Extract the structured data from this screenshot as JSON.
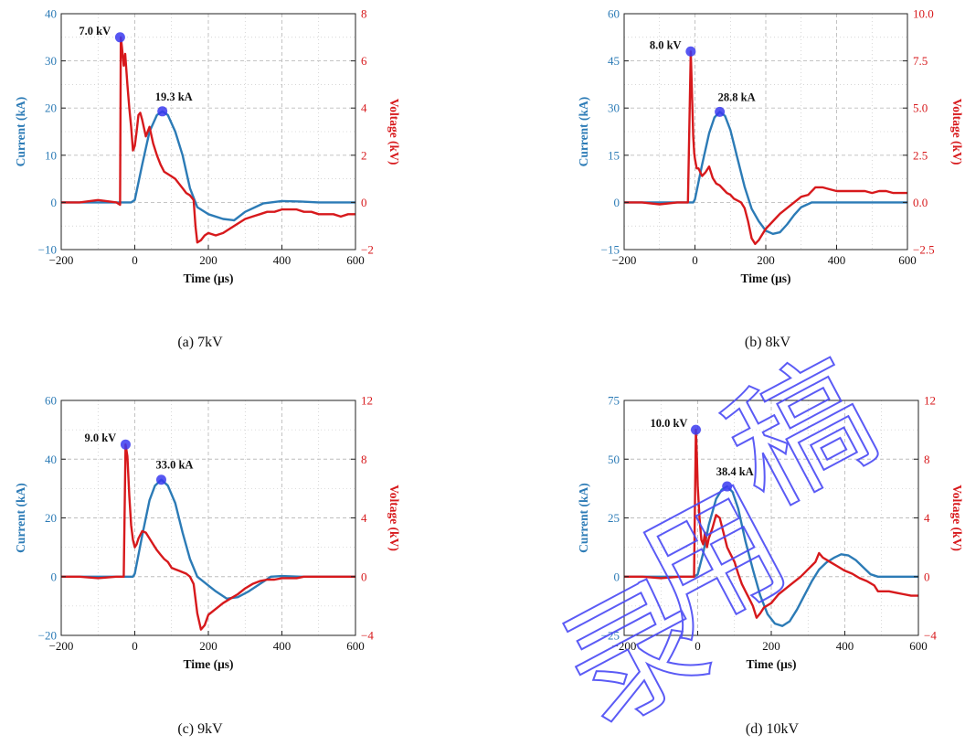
{
  "figure": {
    "watermark": "录用稿",
    "colors": {
      "current": "#2c7bb6",
      "voltage": "#d7191c",
      "marker": "#3a3af0",
      "grid": "#bdbdbd",
      "axis": "#222222"
    }
  },
  "chart_data": [
    {
      "type": "line",
      "caption": "(a) 7kV",
      "xlabel": "Time (μs)",
      "ylabel": "Current (kA)",
      "y2label": "Voltage (kV)",
      "xlim": [
        -200,
        600
      ],
      "ylim": [
        -10,
        40
      ],
      "y2lim": [
        -2,
        8
      ],
      "xticks": [
        -200,
        0,
        200,
        400,
        600
      ],
      "xticklabels": [
        "−200",
        "0",
        "200",
        "400",
        "600"
      ],
      "yticks": [
        -10,
        0,
        10,
        20,
        30,
        40
      ],
      "yticklabels": [
        "−10",
        "0",
        "10",
        "20",
        "30",
        "40"
      ],
      "y2ticks": [
        -2,
        0,
        2,
        4,
        6,
        8
      ],
      "y2ticklabels": [
        "−2",
        "0",
        "2",
        "4",
        "6",
        "8"
      ],
      "grid": true,
      "series": [
        {
          "axis": "left",
          "color": "#2c7bb6",
          "x": [
            -200,
            -45,
            -10,
            0,
            20,
            40,
            60,
            75,
            90,
            110,
            130,
            150,
            170,
            200,
            240,
            270,
            300,
            350,
            400,
            450,
            500,
            550,
            600
          ],
          "y": [
            0,
            0,
            0,
            0.5,
            8,
            15,
            18.5,
            19.3,
            18.5,
            15,
            10,
            3,
            -1,
            -2.5,
            -3.5,
            -3.8,
            -2,
            -0.2,
            0.3,
            0.2,
            0,
            0,
            0
          ]
        },
        {
          "axis": "right",
          "color": "#d7191c",
          "x": [
            -200,
            -150,
            -100,
            -50,
            -40,
            -38,
            -35,
            -30,
            -26,
            -20,
            -15,
            -10,
            -5,
            0,
            5,
            10,
            15,
            20,
            30,
            40,
            50,
            60,
            70,
            80,
            90,
            100,
            110,
            120,
            130,
            140,
            150,
            160,
            165,
            170,
            180,
            190,
            200,
            220,
            240,
            260,
            280,
            300,
            320,
            340,
            360,
            380,
            400,
            420,
            440,
            460,
            480,
            500,
            520,
            540,
            560,
            580,
            600
          ],
          "y": [
            0,
            0,
            0.1,
            0,
            -0.1,
            7.0,
            6.6,
            5.8,
            6.3,
            5.0,
            4.0,
            3.2,
            2.2,
            2.4,
            3.0,
            3.7,
            3.8,
            3.5,
            2.8,
            3.2,
            2.5,
            2.0,
            1.6,
            1.3,
            1.2,
            1.1,
            1.0,
            0.8,
            0.6,
            0.4,
            0.3,
            0.1,
            -1.0,
            -1.7,
            -1.6,
            -1.4,
            -1.3,
            -1.4,
            -1.3,
            -1.1,
            -0.9,
            -0.7,
            -0.6,
            -0.5,
            -0.4,
            -0.4,
            -0.3,
            -0.3,
            -0.3,
            -0.4,
            -0.4,
            -0.5,
            -0.5,
            -0.5,
            -0.6,
            -0.5,
            -0.5
          ]
        }
      ],
      "annotations": [
        {
          "text": "7.0 kV",
          "axis": "right",
          "x": -40,
          "y": 7.0,
          "dx": -45,
          "dy": -3
        },
        {
          "text": "19.3 kA",
          "axis": "left",
          "x": 75,
          "y": 19.3,
          "dx": -8,
          "dy": -12
        }
      ]
    },
    {
      "type": "line",
      "caption": "(b) 8kV",
      "xlabel": "Time (μs)",
      "ylabel": "Current (kA)",
      "y2label": "Voltage (kV)",
      "xlim": [
        -200,
        600
      ],
      "ylim": [
        -15,
        60
      ],
      "y2lim": [
        -2.5,
        10
      ],
      "xticks": [
        -200,
        0,
        200,
        400,
        600
      ],
      "xticklabels": [
        "−200",
        "0",
        "200",
        "400",
        "600"
      ],
      "yticks": [
        -15,
        0,
        15,
        30,
        45,
        60
      ],
      "yticklabels": [
        "−15",
        "0",
        "15",
        "30",
        "45",
        "60"
      ],
      "y2ticks": [
        -2.5,
        0,
        2.5,
        5,
        7.5,
        10
      ],
      "y2ticklabels": [
        "−2.5",
        "0.0",
        "2.5",
        "5.0",
        "7.5",
        "10.0"
      ],
      "grid": true,
      "series": [
        {
          "axis": "left",
          "color": "#2c7bb6",
          "x": [
            -200,
            -20,
            -5,
            0,
            20,
            40,
            55,
            70,
            85,
            100,
            120,
            140,
            160,
            180,
            200,
            220,
            240,
            260,
            280,
            300,
            330,
            360,
            400,
            450,
            500,
            550,
            600
          ],
          "y": [
            0,
            0,
            0,
            1,
            12,
            22,
            27,
            28.8,
            27.5,
            23,
            14,
            5,
            -2,
            -6,
            -9,
            -10,
            -9.5,
            -7,
            -4,
            -1.5,
            0,
            0,
            0,
            0,
            0,
            0,
            0
          ]
        },
        {
          "axis": "right",
          "color": "#d7191c",
          "x": [
            -200,
            -150,
            -100,
            -50,
            -20,
            -12,
            -8,
            -5,
            -2,
            0,
            5,
            10,
            20,
            30,
            40,
            50,
            60,
            70,
            80,
            90,
            100,
            110,
            120,
            130,
            140,
            150,
            160,
            170,
            180,
            190,
            200,
            220,
            240,
            260,
            280,
            300,
            320,
            340,
            360,
            380,
            400,
            420,
            440,
            460,
            480,
            500,
            520,
            540,
            560,
            580,
            600
          ],
          "y": [
            0,
            0,
            -0.1,
            0,
            0,
            8.0,
            5.5,
            3.5,
            2.6,
            2.3,
            1.8,
            1.8,
            1.4,
            1.6,
            1.9,
            1.3,
            1.0,
            0.9,
            0.7,
            0.5,
            0.4,
            0.2,
            0.1,
            0,
            -0.3,
            -1.0,
            -1.9,
            -2.2,
            -2.0,
            -1.7,
            -1.4,
            -1.0,
            -0.6,
            -0.3,
            0,
            0.3,
            0.4,
            0.8,
            0.8,
            0.7,
            0.6,
            0.6,
            0.6,
            0.6,
            0.6,
            0.5,
            0.6,
            0.6,
            0.5,
            0.5,
            0.5
          ]
        }
      ],
      "annotations": [
        {
          "text": "8.0 kV",
          "axis": "right",
          "x": -12,
          "y": 8.0,
          "dx": -45,
          "dy": -3
        },
        {
          "text": "28.8 kA",
          "axis": "left",
          "x": 70,
          "y": 28.8,
          "dx": -2,
          "dy": -12
        }
      ]
    },
    {
      "type": "line",
      "caption": "(c) 9kV",
      "xlabel": "Time (μs)",
      "ylabel": "Current (kA)",
      "y2label": "Voltage (kV)",
      "xlim": [
        -200,
        600
      ],
      "ylim": [
        -20,
        60
      ],
      "y2lim": [
        -4,
        12
      ],
      "xticks": [
        -200,
        0,
        200,
        400,
        600
      ],
      "xticklabels": [
        "−200",
        "0",
        "200",
        "400",
        "600"
      ],
      "yticks": [
        -20,
        0,
        20,
        40,
        60
      ],
      "yticklabels": [
        "−20",
        "0",
        "20",
        "40",
        "60"
      ],
      "y2ticks": [
        -4,
        0,
        4,
        8,
        12
      ],
      "y2ticklabels": [
        "−4",
        "0",
        "4",
        "8",
        "12"
      ],
      "grid": true,
      "series": [
        {
          "axis": "left",
          "color": "#2c7bb6",
          "x": [
            -200,
            -20,
            -5,
            0,
            20,
            40,
            55,
            72,
            90,
            110,
            130,
            150,
            170,
            200,
            220,
            250,
            280,
            310,
            340,
            370,
            400,
            450,
            500,
            550,
            600
          ],
          "y": [
            0,
            0,
            0,
            1,
            14,
            26,
            31,
            33,
            31,
            25,
            15,
            6,
            0,
            -3,
            -5,
            -7.5,
            -7,
            -5,
            -2.5,
            0,
            0.2,
            0,
            0,
            0,
            0
          ]
        },
        {
          "axis": "right",
          "color": "#d7191c",
          "x": [
            -200,
            -150,
            -100,
            -50,
            -30,
            -25,
            -20,
            -15,
            -10,
            -5,
            0,
            5,
            10,
            20,
            30,
            40,
            50,
            60,
            70,
            80,
            90,
            100,
            110,
            120,
            130,
            140,
            150,
            160,
            170,
            180,
            190,
            200,
            220,
            240,
            260,
            280,
            300,
            320,
            340,
            360,
            380,
            400,
            420,
            440,
            460,
            480,
            500,
            520,
            540,
            560,
            580,
            600
          ],
          "y": [
            0,
            0,
            -0.1,
            0,
            0,
            9.0,
            8.2,
            5.5,
            3.5,
            2.5,
            2.0,
            2.2,
            2.6,
            3.1,
            3.0,
            2.6,
            2.2,
            1.8,
            1.5,
            1.2,
            1.0,
            0.6,
            0.5,
            0.4,
            0.3,
            0.2,
            0,
            -0.5,
            -2.5,
            -3.6,
            -3.3,
            -2.6,
            -2.2,
            -1.8,
            -1.5,
            -1.2,
            -0.8,
            -0.5,
            -0.3,
            -0.2,
            -0.2,
            -0.1,
            -0.1,
            -0.1,
            0,
            0,
            0,
            0,
            0,
            0,
            0,
            0
          ]
        }
      ],
      "annotations": [
        {
          "text": "9.0 kV",
          "axis": "right",
          "x": -25,
          "y": 9.0,
          "dx": -45,
          "dy": -3
        },
        {
          "text": "33.0 kA",
          "axis": "left",
          "x": 72,
          "y": 33.0,
          "dx": -6,
          "dy": -12
        }
      ]
    },
    {
      "type": "line",
      "caption": "(d) 10kV",
      "xlabel": "Time (μs)",
      "ylabel": "Current (kA)",
      "y2label": "Voltage (kV)",
      "xlim": [
        -200,
        600
      ],
      "ylim": [
        -25,
        75
      ],
      "y2lim": [
        -4,
        12
      ],
      "xticks": [
        -200,
        0,
        200,
        400,
        600
      ],
      "xticklabels": [
        "−200",
        "0",
        "200",
        "400",
        "600"
      ],
      "yticks": [
        -25,
        0,
        25,
        50,
        75
      ],
      "yticklabels": [
        "−25",
        "0",
        "25",
        "50",
        "75"
      ],
      "y2ticks": [
        -4,
        0,
        4,
        8,
        12
      ],
      "y2ticklabels": [
        "−4",
        "0",
        "4",
        "8",
        "12"
      ],
      "grid": true,
      "series": [
        {
          "axis": "left",
          "color": "#2c7bb6",
          "x": [
            -200,
            -10,
            0,
            15,
            30,
            50,
            65,
            80,
            95,
            110,
            130,
            150,
            170,
            190,
            210,
            230,
            250,
            270,
            290,
            310,
            330,
            350,
            370,
            390,
            410,
            430,
            450,
            470,
            490,
            510,
            550,
            600
          ],
          "y": [
            0,
            0,
            1,
            10,
            22,
            33,
            37,
            38.4,
            36,
            29,
            15,
            3,
            -8,
            -16,
            -20,
            -21,
            -19,
            -14,
            -8,
            -2,
            3,
            6,
            8,
            9.5,
            9,
            7,
            4,
            1,
            0,
            0,
            0,
            0
          ]
        },
        {
          "axis": "right",
          "color": "#d7191c",
          "x": [
            -200,
            -150,
            -100,
            -50,
            -10,
            -5,
            -2,
            0,
            5,
            10,
            15,
            20,
            25,
            30,
            40,
            50,
            60,
            70,
            80,
            90,
            100,
            110,
            120,
            130,
            140,
            150,
            160,
            170,
            180,
            200,
            220,
            240,
            260,
            280,
            300,
            320,
            330,
            340,
            360,
            380,
            400,
            420,
            440,
            460,
            480,
            490,
            500,
            520,
            540,
            560,
            580,
            600
          ],
          "y": [
            0,
            0,
            -0.1,
            0,
            0,
            10.0,
            8.0,
            6.2,
            4.0,
            2.5,
            2.2,
            3.0,
            2.0,
            2.6,
            3.3,
            4.2,
            4.0,
            3.0,
            2.0,
            1.5,
            1.0,
            0.2,
            -0.5,
            -1.0,
            -1.5,
            -2.0,
            -2.8,
            -2.5,
            -2.1,
            -1.8,
            -1.2,
            -0.8,
            -0.4,
            0,
            0.5,
            1.0,
            1.6,
            1.3,
            1.0,
            0.7,
            0.4,
            0.2,
            -0.1,
            -0.3,
            -0.6,
            -1.0,
            -1.0,
            -1.0,
            -1.1,
            -1.2,
            -1.3,
            -1.3
          ]
        }
      ],
      "annotations": [
        {
          "text": "10.0 kV",
          "axis": "right",
          "x": -5,
          "y": 10.0,
          "dx": -50,
          "dy": -3
        },
        {
          "text": "38.4 kA",
          "axis": "left",
          "x": 80,
          "y": 38.4,
          "dx": -12,
          "dy": -12
        }
      ]
    }
  ]
}
